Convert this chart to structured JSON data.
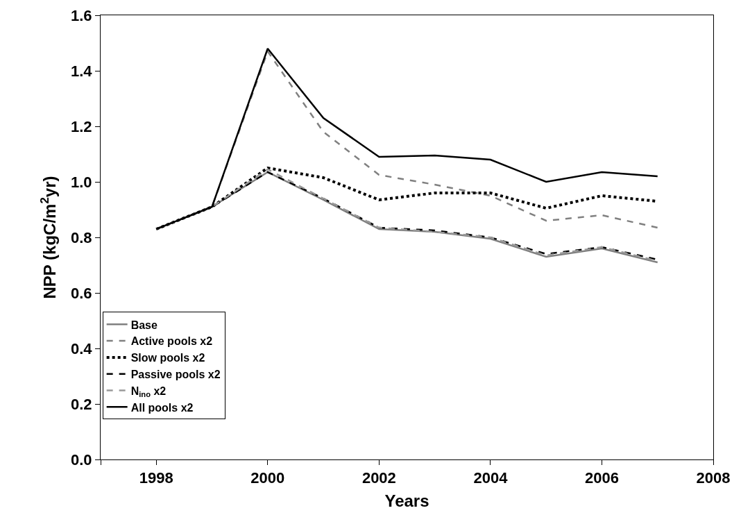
{
  "chart_data": {
    "type": "line",
    "xlabel": "Years",
    "ylabel": "NPP (kgC/m$^{2}$yr)",
    "x": [
      1998,
      1999,
      2000,
      2001,
      2002,
      2003,
      2004,
      2005,
      2006,
      2007
    ],
    "xlim": [
      1997,
      2008
    ],
    "xticks": [
      {
        "value": 1997,
        "label": null
      },
      1998,
      2000,
      2002,
      2004,
      2006,
      2008
    ],
    "ylim": [
      0,
      1.6
    ],
    "yticks": [
      {
        "value": 0,
        "label": "0.0"
      },
      {
        "value": 0.2,
        "label": "0.2"
      },
      {
        "value": 0.4,
        "label": "0.4"
      },
      {
        "value": 0.6,
        "label": "0.6"
      },
      {
        "value": 0.8,
        "label": "0.8"
      },
      {
        "value": 1,
        "label": "1.0"
      },
      {
        "value": 1.2,
        "label": "1.2"
      },
      {
        "value": 1.4,
        "label": "1.4"
      },
      {
        "value": 1.6,
        "label": "1.6"
      }
    ],
    "grid": false,
    "legend": "bottom left",
    "marker": "none",
    "series": [
      {
        "name": "Base",
        "color": "#808080",
        "line_style": "solid",
        "values": [
          0.83,
          0.91,
          1.035,
          0.935,
          0.83,
          0.82,
          0.795,
          0.73,
          0.76,
          0.71
        ]
      },
      {
        "name": "Active pools x2",
        "color": "#808080",
        "line_style": "dashed",
        "values": [
          0.83,
          0.91,
          1.47,
          1.18,
          1.025,
          0.99,
          0.95,
          0.86,
          0.88,
          0.835
        ]
      },
      {
        "name": "Slow pools x2",
        "color": "#000000",
        "line_style": "dotted",
        "values": [
          0.83,
          0.91,
          1.05,
          1.015,
          0.935,
          0.96,
          0.96,
          0.905,
          0.95,
          0.93
        ]
      },
      {
        "name": "Passive pools x2",
        "color": "#000000",
        "line_style": "dashed",
        "values": [
          0.83,
          0.91,
          1.035,
          0.94,
          0.835,
          0.825,
          0.8,
          0.74,
          0.765,
          0.72
        ]
      },
      {
        "name": "N$_{ino}$ x2",
        "color": "#999999",
        "line_style": "dashed",
        "values": [
          0.83,
          0.91,
          1.045,
          0.94,
          0.835,
          0.82,
          0.8,
          0.735,
          0.765,
          0.715
        ]
      },
      {
        "name": "All pools x2",
        "color": "#000000",
        "line_style": "solid",
        "values": [
          0.83,
          0.91,
          1.48,
          1.23,
          1.09,
          1.095,
          1.08,
          1.0,
          1.035,
          1.02
        ]
      }
    ]
  }
}
